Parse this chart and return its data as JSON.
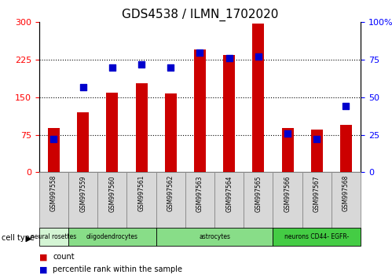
{
  "title": "GDS4538 / ILMN_1702020",
  "samples": [
    "GSM997558",
    "GSM997559",
    "GSM997560",
    "GSM997561",
    "GSM997562",
    "GSM997563",
    "GSM997564",
    "GSM997565",
    "GSM997566",
    "GSM997567",
    "GSM997568"
  ],
  "counts": [
    88,
    120,
    160,
    178,
    158,
    245,
    235,
    298,
    88,
    85,
    95
  ],
  "percentiles": [
    22,
    57,
    70,
    72,
    70,
    80,
    76,
    77,
    26,
    22,
    44
  ],
  "cell_types": [
    {
      "label": "neural rosettes",
      "start": 0,
      "end": 1,
      "color": "#d4f5d4"
    },
    {
      "label": "oligodendrocytes",
      "start": 1,
      "end": 4,
      "color": "#88dd88"
    },
    {
      "label": "astrocytes",
      "start": 4,
      "end": 8,
      "color": "#88dd88"
    },
    {
      "label": "neurons CD44- EGFR-",
      "start": 8,
      "end": 11,
      "color": "#44cc44"
    }
  ],
  "ylim_left": [
    0,
    300
  ],
  "ylim_right": [
    0,
    100
  ],
  "yticks_left": [
    0,
    75,
    150,
    225,
    300
  ],
  "yticks_right": [
    0,
    25,
    50,
    75,
    100
  ],
  "bar_color": "#cc0000",
  "dot_color": "#0000cc",
  "bar_width": 0.4,
  "background_color": "#ffffff",
  "title_fontsize": 11,
  "gridline_yvals": [
    75,
    150,
    225
  ],
  "legend_items": [
    {
      "color": "#cc0000",
      "label": "count"
    },
    {
      "color": "#0000cc",
      "label": "percentile rank within the sample"
    }
  ]
}
